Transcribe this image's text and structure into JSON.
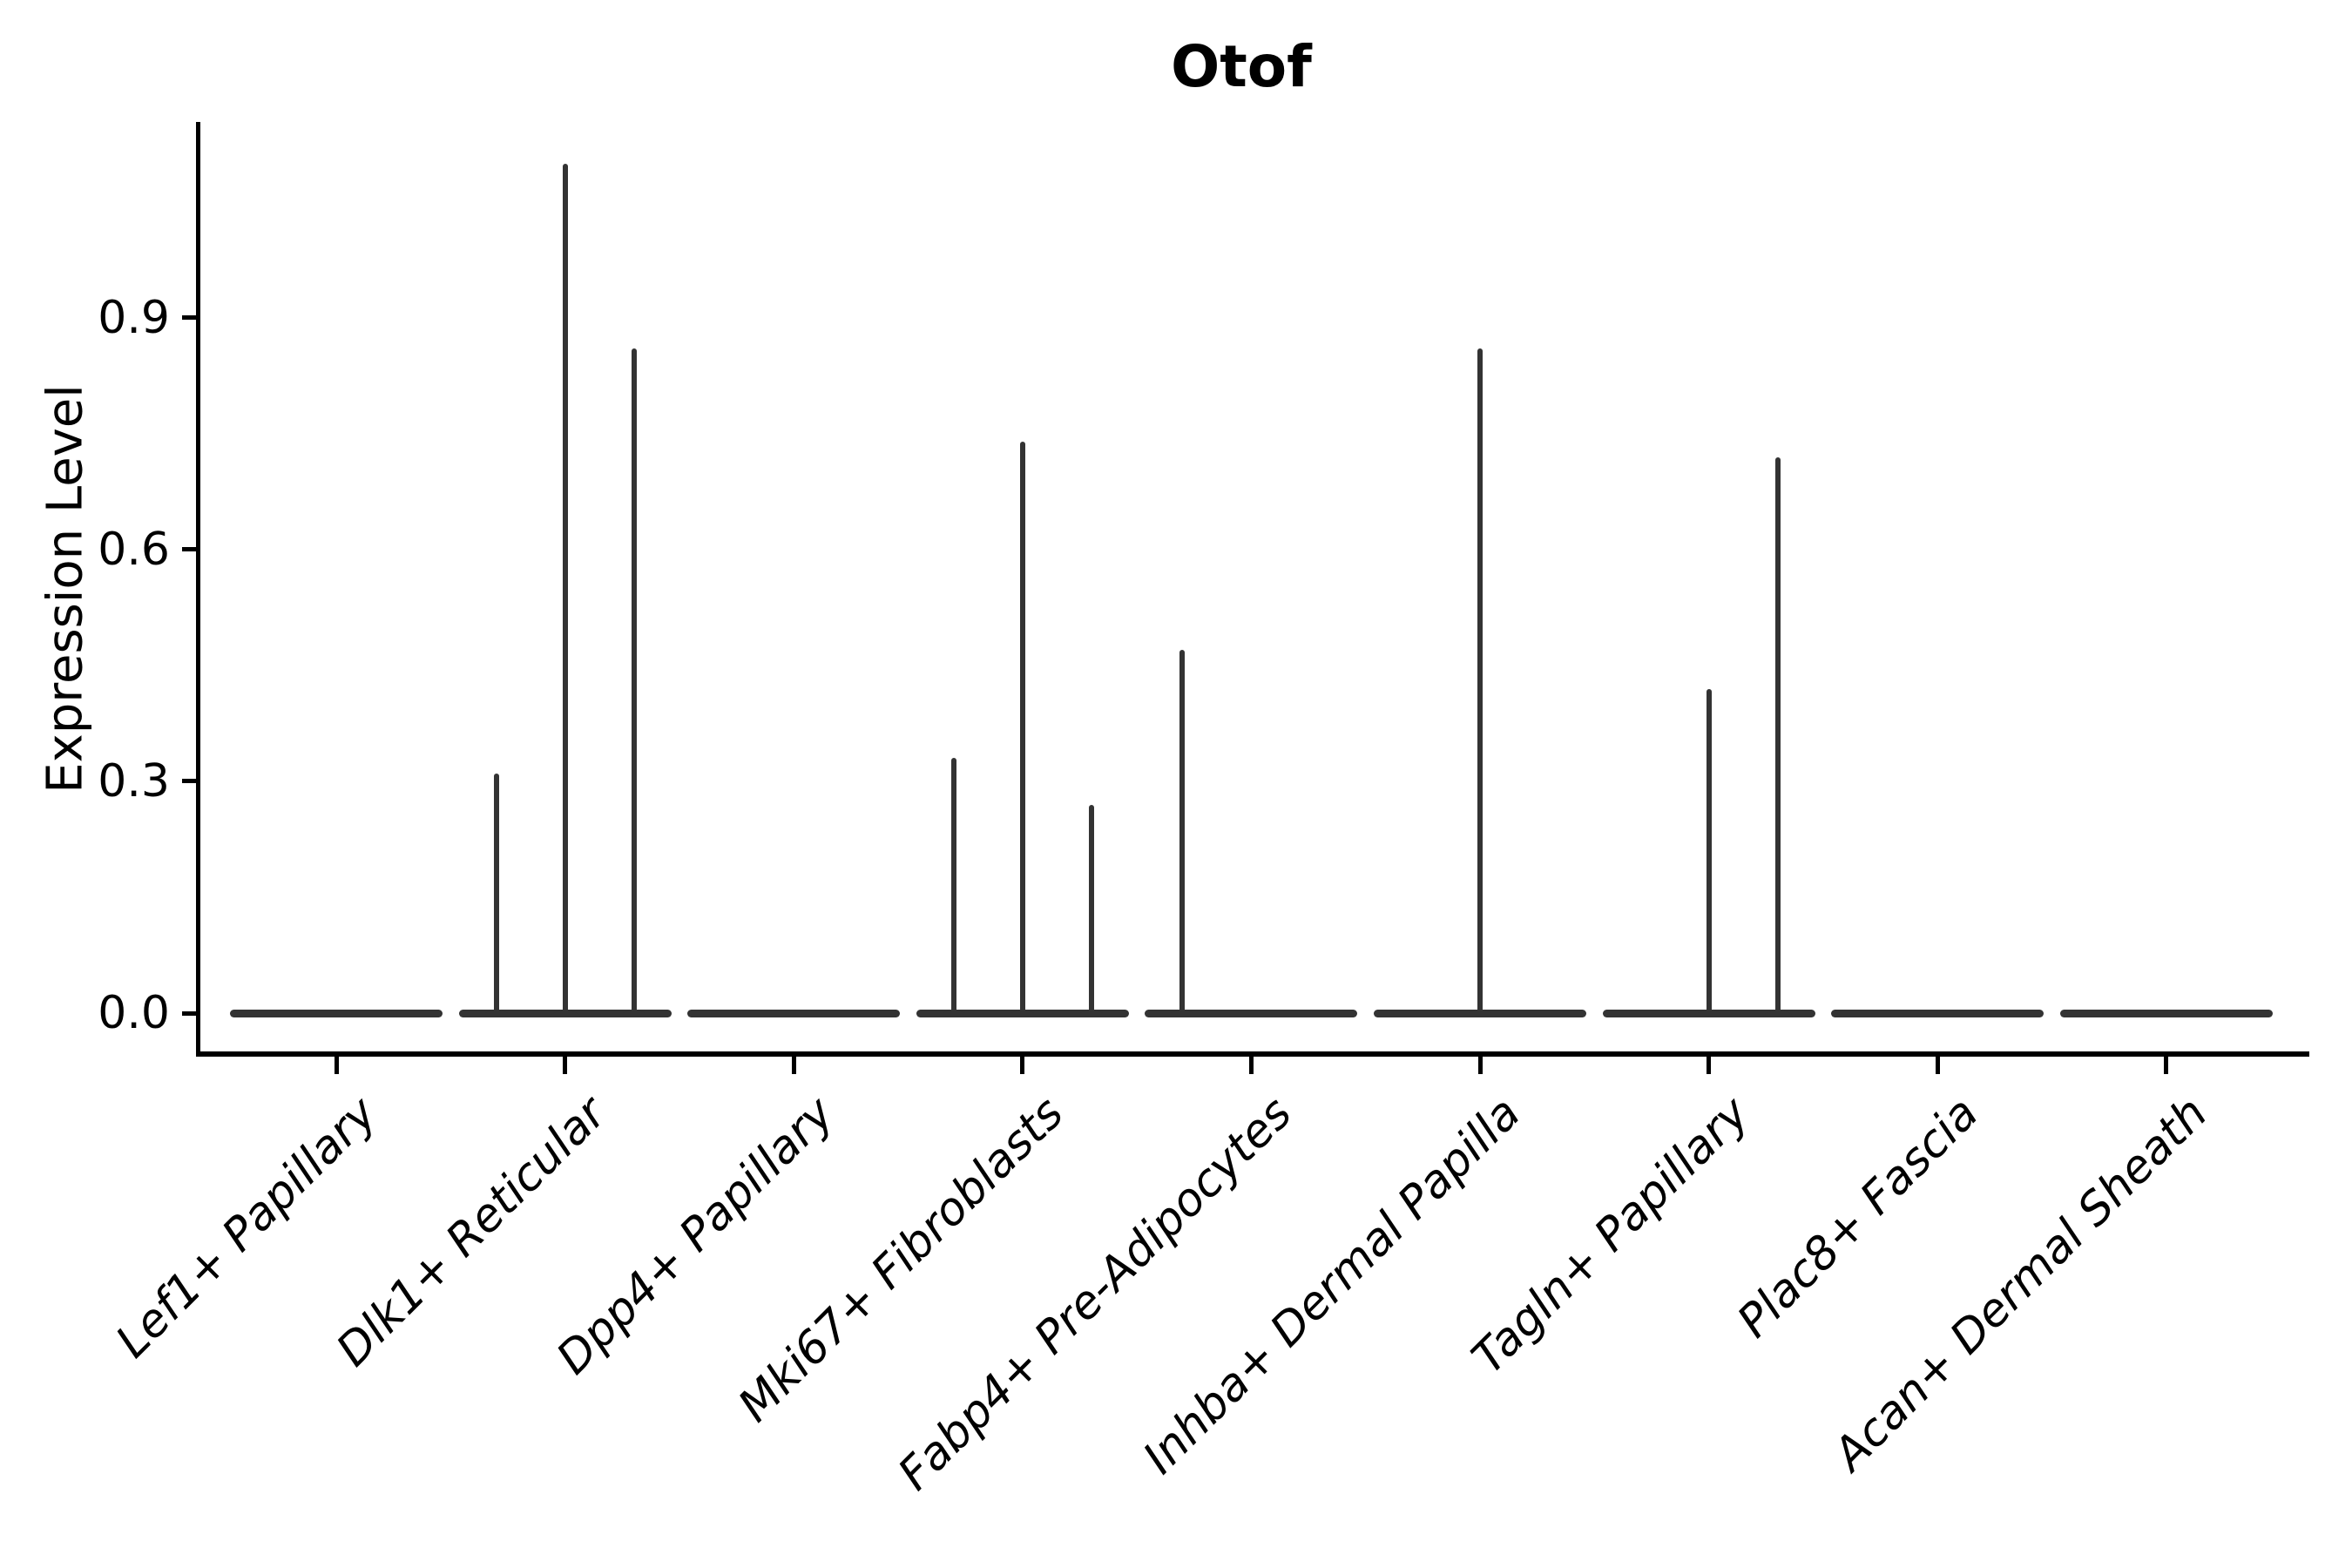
{
  "figure": {
    "title": "Otof",
    "background_color": "#ffffff",
    "text_color": "#000000",
    "violin_color": "#333333",
    "spine_color": "#000000"
  },
  "y_axis": {
    "label": "Expression Level",
    "tick_labels": [
      "0.0",
      "0.3",
      "0.6",
      "0.9"
    ]
  },
  "x_axis": {
    "tick_labels": [
      "Lef1+ Papillary",
      "Dlk1+ Reticular",
      "Dpp4+ Papillary",
      "Mki67+ Fibroblasts",
      "Fabp4+ Pre-Adipocytes",
      "Inhba+ Dermal Papilla",
      "Tagln+ Papillary",
      "Plac8+ Fascia",
      "Acan+ Dermal Sheath"
    ]
  },
  "chart_data": {
    "type": "violin",
    "title": "Otof",
    "xlabel": "",
    "ylabel": "Expression Level",
    "ylim": [
      -0.055,
      1.155
    ],
    "yticks": [
      0.0,
      0.3,
      0.6,
      0.9
    ],
    "ytick_labels": [
      "0.0",
      "0.3",
      "0.6",
      "0.9"
    ],
    "grid": false,
    "legend": "none",
    "style_note": "thin spike violins, three sub-violin slots per category, flat baseline at 0",
    "categories": [
      "Lef1+ Papillary",
      "Dlk1+ Reticular",
      "Dpp4+ Papillary",
      "Mki67+ Fibroblasts",
      "Fabp4+ Pre-Adipocytes",
      "Inhba+ Dermal Papilla",
      "Tagln+ Papillary",
      "Plac8+ Fascia",
      "Acan+ Dermal Sheath"
    ],
    "violins": [
      {
        "category": "Lef1+ Papillary",
        "baseline_value": 0.0,
        "spikes": []
      },
      {
        "category": "Dlk1+ Reticular",
        "baseline_value": 0.0,
        "spikes": [
          {
            "slot": -1,
            "max": 0.31
          },
          {
            "slot": 0,
            "max": 1.1
          },
          {
            "slot": 1,
            "max": 0.86
          }
        ]
      },
      {
        "category": "Dpp4+ Papillary",
        "baseline_value": 0.0,
        "spikes": []
      },
      {
        "category": "Mki67+ Fibroblasts",
        "baseline_value": 0.0,
        "spikes": [
          {
            "slot": -1,
            "max": 0.33
          },
          {
            "slot": 0,
            "max": 0.74
          },
          {
            "slot": 1,
            "max": 0.27
          }
        ]
      },
      {
        "category": "Fabp4+ Pre-Adipocytes",
        "baseline_value": 0.0,
        "spikes": [
          {
            "slot": -1,
            "max": 0.47
          }
        ]
      },
      {
        "category": "Inhba+ Dermal Papilla",
        "baseline_value": 0.0,
        "spikes": [
          {
            "slot": 0,
            "max": 0.86
          }
        ]
      },
      {
        "category": "Tagln+ Papillary",
        "baseline_value": 0.0,
        "spikes": [
          {
            "slot": 0,
            "max": 0.42
          },
          {
            "slot": 1,
            "max": 0.72
          }
        ]
      },
      {
        "category": "Plac8+ Fascia",
        "baseline_value": 0.0,
        "spikes": []
      },
      {
        "category": "Acan+ Dermal Sheath",
        "baseline_value": 0.0,
        "spikes": []
      }
    ]
  }
}
